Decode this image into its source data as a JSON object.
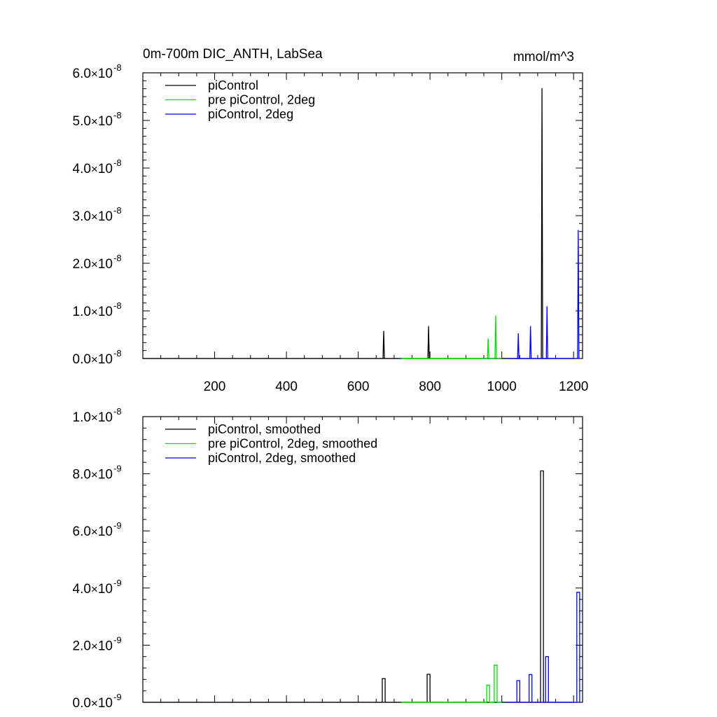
{
  "chart_data": [
    {
      "type": "line",
      "title": "0m-700m DIC_ANTH, LabSea",
      "units": "mmol/m^3",
      "xlim": [
        0,
        1225
      ],
      "ylim": [
        0,
        6e-08
      ],
      "x_ticks": [
        {
          "value": 200,
          "label": "200"
        },
        {
          "value": 400,
          "label": "400"
        },
        {
          "value": 600,
          "label": "600"
        },
        {
          "value": 800,
          "label": "800"
        },
        {
          "value": 1000,
          "label": "1000"
        },
        {
          "value": 1200,
          "label": "1200"
        }
      ],
      "y_ticks": [
        {
          "value": 0.0,
          "mantissa": "0.0",
          "times": "×",
          "base": "10",
          "exp": "-8"
        },
        {
          "value": 1e-08,
          "mantissa": "1.0",
          "times": "×",
          "base": "10",
          "exp": "-8"
        },
        {
          "value": 2e-08,
          "mantissa": "2.0",
          "times": "×",
          "base": "10",
          "exp": "-8"
        },
        {
          "value": 3e-08,
          "mantissa": "3.0",
          "times": "×",
          "base": "10",
          "exp": "-8"
        },
        {
          "value": 4e-08,
          "mantissa": "4.0",
          "times": "×",
          "base": "10",
          "exp": "-8"
        },
        {
          "value": 5e-08,
          "mantissa": "5.0",
          "times": "×",
          "base": "10",
          "exp": "-8"
        },
        {
          "value": 6e-08,
          "mantissa": "6.0",
          "times": "×",
          "base": "10",
          "exp": "-8"
        }
      ],
      "grid": false,
      "legend_position": "top-left",
      "series": [
        {
          "name": "piControl",
          "color": "#000000",
          "x_range": [
            0,
            1200
          ],
          "spikes": [
            {
              "x": 671,
              "y": 5.8e-09
            },
            {
              "x": 796,
              "y": 6.8e-09
            },
            {
              "x": 1112,
              "y": 5.68e-08
            }
          ]
        },
        {
          "name": "pre piControl, 2deg",
          "color": "#00dd00",
          "x_range": [
            720,
            1000
          ],
          "spikes": [
            {
              "x": 962,
              "y": 4.2e-09
            },
            {
              "x": 983,
              "y": 9e-09
            }
          ]
        },
        {
          "name": "piControl, 2deg",
          "color": "#0000ff",
          "x_range": [
            1015,
            1218
          ],
          "spikes": [
            {
              "x": 1046,
              "y": 5.3e-09
            },
            {
              "x": 1080,
              "y": 6.8e-09
            },
            {
              "x": 1126,
              "y": 1.1e-08
            },
            {
              "x": 1213,
              "y": 2.7e-08
            }
          ]
        }
      ]
    },
    {
      "type": "line",
      "xlim": [
        0,
        1225
      ],
      "ylim": [
        0,
        1e-08
      ],
      "x_ticks": [
        {
          "value": 200
        },
        {
          "value": 400
        },
        {
          "value": 600
        },
        {
          "value": 800
        },
        {
          "value": 1000
        },
        {
          "value": 1200
        }
      ],
      "y_ticks": [
        {
          "value": 0.0,
          "mantissa": "0.0",
          "times": "×",
          "base": "10",
          "exp": "-9"
        },
        {
          "value": 2e-09,
          "mantissa": "2.0",
          "times": "×",
          "base": "10",
          "exp": "-9"
        },
        {
          "value": 4e-09,
          "mantissa": "4.0",
          "times": "×",
          "base": "10",
          "exp": "-9"
        },
        {
          "value": 6e-09,
          "mantissa": "6.0",
          "times": "×",
          "base": "10",
          "exp": "-9"
        },
        {
          "value": 8e-09,
          "mantissa": "8.0",
          "times": "×",
          "base": "10",
          "exp": "-9"
        },
        {
          "value": 1e-08,
          "mantissa": "1.0",
          "times": "×",
          "base": "10",
          "exp": "-8"
        }
      ],
      "grid": false,
      "legend_position": "top-left",
      "series": [
        {
          "name": "piControl, smoothed",
          "color": "#000000",
          "x_range": [
            0,
            1200
          ],
          "boxes": [
            {
              "x0": 667,
              "x1": 675,
              "y": 8.3e-10
            },
            {
              "x0": 792,
              "x1": 800,
              "y": 9.8e-10
            },
            {
              "x0": 1108,
              "x1": 1116,
              "y": 8.1e-09
            }
          ]
        },
        {
          "name": "pre piControl, 2deg, smoothed",
          "color": "#00dd00",
          "x_range": [
            720,
            1000
          ],
          "boxes": [
            {
              "x0": 958,
              "x1": 966,
              "y": 6e-10
            },
            {
              "x0": 979,
              "x1": 987,
              "y": 1.3e-09
            }
          ]
        },
        {
          "name": "piControl, 2deg, smoothed",
          "color": "#0000ff",
          "x_range": [
            1015,
            1218
          ],
          "boxes": [
            {
              "x0": 1042,
              "x1": 1050,
              "y": 7.6e-10
            },
            {
              "x0": 1076,
              "x1": 1084,
              "y": 9.7e-10
            },
            {
              "x0": 1122,
              "x1": 1130,
              "y": 1.6e-09
            },
            {
              "x0": 1209,
              "x1": 1217,
              "y": 3.85e-09
            }
          ]
        }
      ]
    }
  ]
}
